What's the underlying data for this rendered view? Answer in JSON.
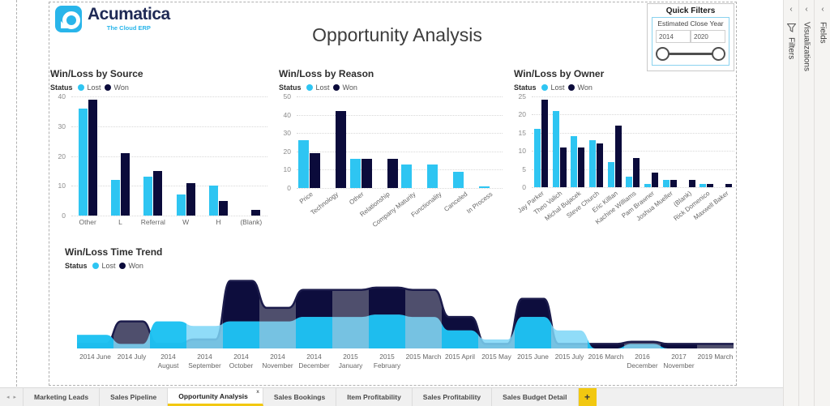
{
  "page_title": "Opportunity Analysis",
  "logo": {
    "name": "Acumatica",
    "tagline": "The Cloud ERP"
  },
  "quick_filters": {
    "title": "Quick Filters",
    "filter_label": "Estimated Close Year",
    "min_value": "2014",
    "max_value": "2020"
  },
  "legend": {
    "label": "Status",
    "lost": "Lost",
    "won": "Won"
  },
  "colors": {
    "lost": "#2EC5F2",
    "won": "#0B0B3B",
    "tab_accent": "#F2C811",
    "logo_blue": "#29B5EA",
    "logo_navy": "#1F2A55"
  },
  "side_panels": {
    "chevron": "‹",
    "items": [
      {
        "label": "Filters"
      },
      {
        "label": "Visualizations"
      },
      {
        "label": "Fields"
      }
    ]
  },
  "page_tabs": {
    "prev": "◂",
    "next": "▸",
    "add": "+",
    "active_index": 2,
    "close_glyph": "x",
    "items": [
      "Marketing Leads",
      "Sales Pipeline",
      "Opportunity Analysis",
      "Sales Bookings",
      "Item Profitability",
      "Sales Profitability",
      "Sales Budget Detail"
    ]
  },
  "chart_data": [
    {
      "id": "win-loss-by-source",
      "type": "bar",
      "title": "Win/Loss by Source",
      "legend_label": "Status",
      "categories": [
        "Other",
        "L",
        "Referral",
        "W",
        "H",
        "(Blank)"
      ],
      "series": [
        {
          "name": "Lost",
          "color": "#2EC5F2",
          "values": [
            36,
            12,
            13,
            7,
            10,
            0
          ]
        },
        {
          "name": "Won",
          "color": "#0B0B3B",
          "values": [
            39,
            21,
            15,
            11,
            5,
            2
          ]
        }
      ],
      "ylim": [
        0,
        40
      ],
      "yticks": [
        0,
        10,
        20,
        30,
        40
      ],
      "grid": true,
      "legend_position": "top"
    },
    {
      "id": "win-loss-by-reason",
      "type": "bar",
      "title": "Win/Loss by Reason",
      "legend_label": "Status",
      "categories": [
        "Price",
        "Technology",
        "Other",
        "Relationship",
        "Company Maturity",
        "Functionality",
        "Canceled",
        "In Process"
      ],
      "series": [
        {
          "name": "Lost",
          "color": "#2EC5F2",
          "values": [
            26,
            0,
            16,
            0,
            13,
            13,
            9,
            1
          ]
        },
        {
          "name": "Won",
          "color": "#0B0B3B",
          "values": [
            19,
            42,
            16,
            16,
            0,
            0,
            0,
            0
          ]
        }
      ],
      "ylim": [
        0,
        50
      ],
      "yticks": [
        0,
        10,
        20,
        30,
        40,
        50
      ],
      "grid": true,
      "legend_position": "top"
    },
    {
      "id": "win-loss-by-owner",
      "type": "bar",
      "title": "Win/Loss by Owner",
      "legend_label": "Status",
      "categories": [
        "Jay Parker",
        "Theo Valich",
        "Michal Bujacek",
        "Steve Church",
        "Eric Killian",
        "Kachine Williams",
        "Pam Brawner",
        "Joshua Mueller",
        "(Blank)",
        "Rick Domenico",
        "Maxwell Baker"
      ],
      "series": [
        {
          "name": "Lost",
          "color": "#2EC5F2",
          "values": [
            16,
            21,
            14,
            13,
            7,
            3,
            1,
            2,
            0,
            1,
            0
          ]
        },
        {
          "name": "Won",
          "color": "#0B0B3B",
          "values": [
            24,
            11,
            11,
            12,
            17,
            8,
            4,
            2,
            2,
            1,
            1
          ]
        }
      ],
      "ylim": [
        0,
        25
      ],
      "yticks": [
        0,
        5,
        10,
        15,
        20,
        25
      ],
      "grid": true,
      "legend_position": "top"
    },
    {
      "id": "win-loss-time-trend",
      "type": "area",
      "title": "Win/Loss Time Trend",
      "legend_label": "Status",
      "stacked": false,
      "categories": [
        "2014 June",
        "2014 July",
        "2014 August",
        "2014 September",
        "2014 October",
        "2014 November",
        "2014 December",
        "2015 January",
        "2015 February",
        "2015 March",
        "2015 April",
        "2015 May",
        "2015 June",
        "2015 July",
        "2016 March",
        "2016 December",
        "2017 November",
        "2019 March"
      ],
      "series": [
        {
          "name": "Lost",
          "color": "#2EC5F2",
          "values": [
            3,
            1,
            6,
            5,
            6,
            6,
            7,
            7,
            7.5,
            7,
            4,
            2,
            7,
            4,
            0,
            1,
            0,
            0
          ]
        },
        {
          "name": "Won",
          "color": "#0B0B3B",
          "values": [
            1,
            6,
            1,
            2,
            15,
            9,
            13,
            13,
            13.5,
            13,
            7,
            1,
            11,
            1,
            1,
            1.5,
            1,
            1
          ]
        }
      ],
      "ylim": [
        0,
        16
      ],
      "style": {
        "lost_dim": "#7CD6F7",
        "lost_bright": "#10BEF1",
        "won_dim": "#4F4F6D",
        "won_bright": "#0D0D3D",
        "outline": "#1B1B4B"
      }
    }
  ]
}
